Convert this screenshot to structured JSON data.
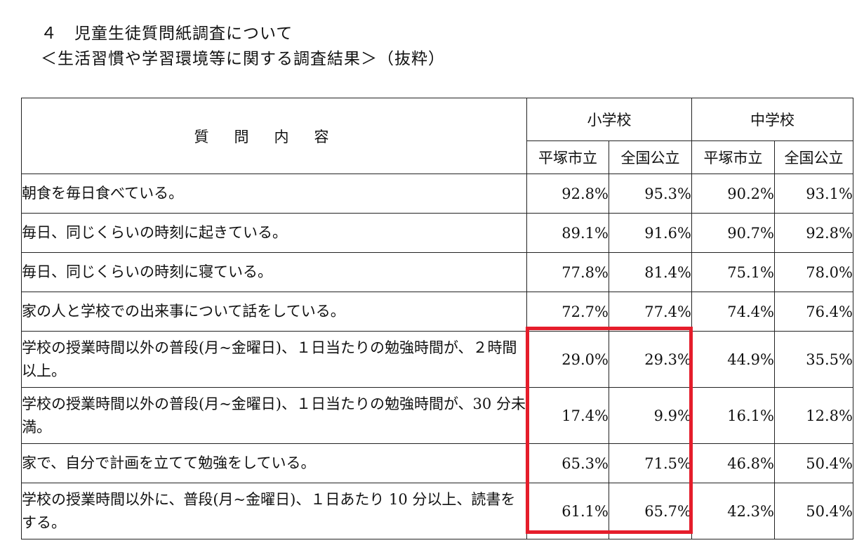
{
  "heading": {
    "line1": "４　児童生徒質問紙調査について",
    "line2": "＜生活習慣や学習環境等に関する調査結果＞（抜粋）"
  },
  "table": {
    "header": {
      "question": "質問内容",
      "elementary": "小学校",
      "junior_high": "中学校",
      "city": "平塚市立",
      "national": "全国公立"
    },
    "rows": [
      {
        "question": "朝食を毎日食べている。",
        "e_city": "92.8%",
        "e_national": "95.3%",
        "j_city": "90.2%",
        "j_national": "93.1%"
      },
      {
        "question": "毎日、同じくらいの時刻に起きている。",
        "e_city": "89.1%",
        "e_national": "91.6%",
        "j_city": "90.7%",
        "j_national": "92.8%"
      },
      {
        "question": "毎日、同じくらいの時刻に寝ている。",
        "e_city": "77.8%",
        "e_national": "81.4%",
        "j_city": "75.1%",
        "j_national": "78.0%"
      },
      {
        "question": "家の人と学校での出来事について話をしている。",
        "e_city": "72.7%",
        "e_national": "77.4%",
        "j_city": "74.4%",
        "j_national": "76.4%"
      },
      {
        "question": "学校の授業時間以外の普段(月~金曜日)、１日当たりの勉強時間が、２時間以上。",
        "e_city": "29.0%",
        "e_national": "29.3%",
        "j_city": "44.9%",
        "j_national": "35.5%"
      },
      {
        "question": "学校の授業時間以外の普段(月~金曜日)、１日当たりの勉強時間が、30 分未満。",
        "e_city": "17.4%",
        "e_national": "9.9%",
        "j_city": "16.1%",
        "j_national": "12.8%"
      },
      {
        "question": "家で、自分で計画を立てて勉強をしている。",
        "e_city": "65.3%",
        "e_national": "71.5%",
        "j_city": "46.8%",
        "j_national": "50.4%"
      },
      {
        "question": "学校の授業時間以外に、普段(月~金曜日)、１日あたり 10 分以上、読書をする。",
        "e_city": "61.1%",
        "e_national": "65.7%",
        "j_city": "42.3%",
        "j_national": "50.4%"
      }
    ]
  },
  "highlight_color": "#e51d2b"
}
